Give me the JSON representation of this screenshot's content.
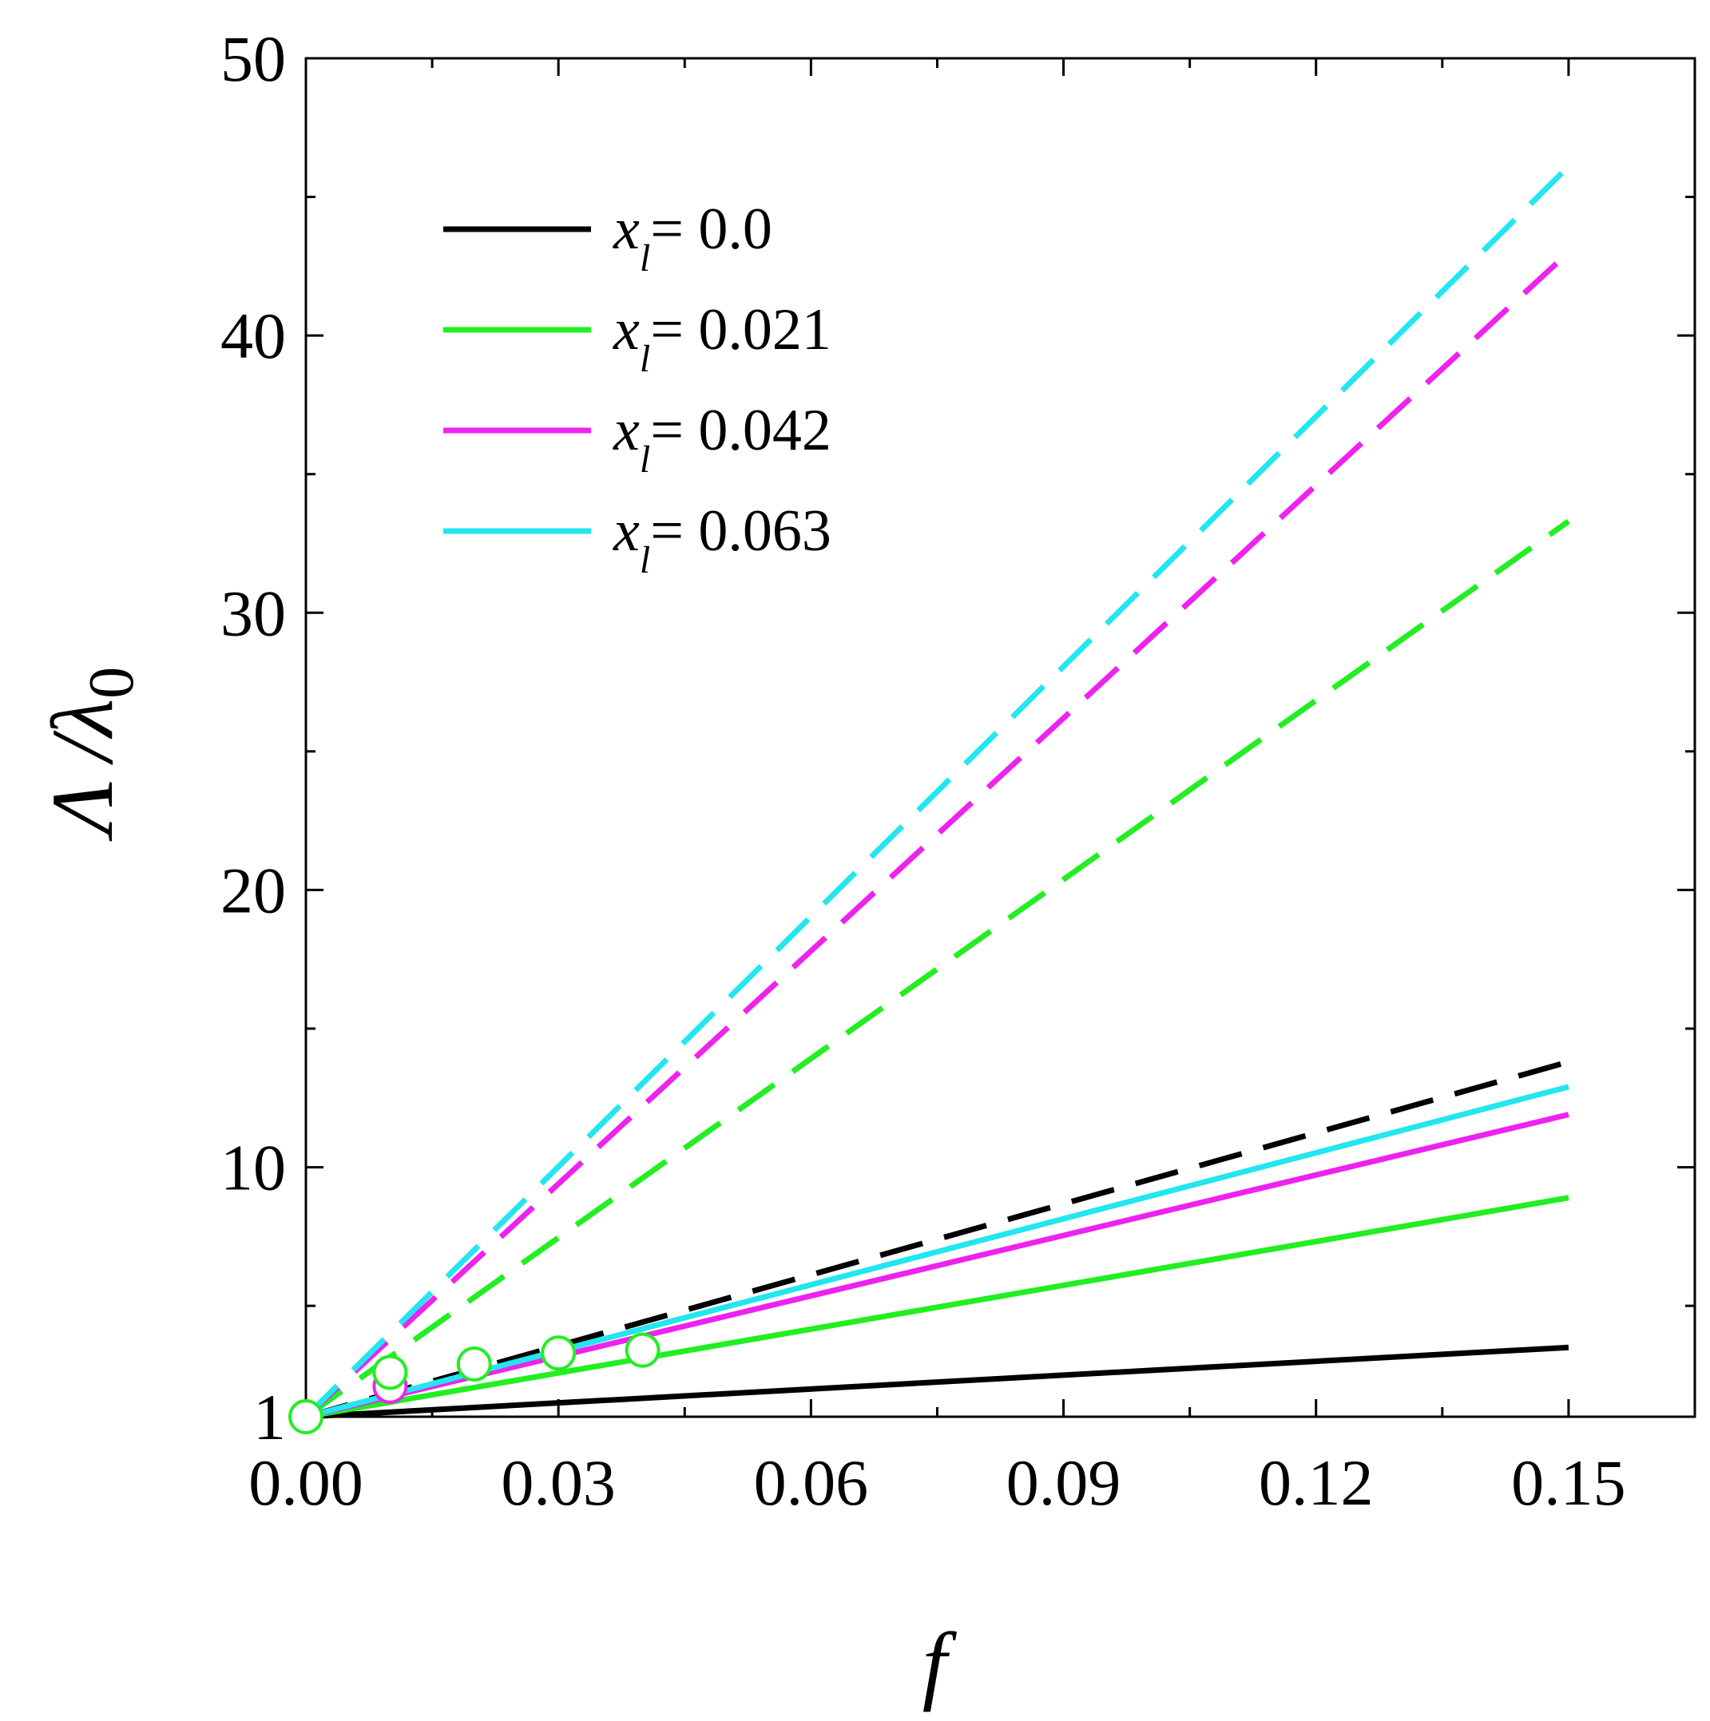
{
  "chart_data": {
    "type": "line",
    "title": "",
    "xlabel": "f",
    "ylabel": "Λ /λ",
    "ylabel_subscript": "0",
    "xlim": [
      0.0,
      0.165
    ],
    "ylim": [
      1,
      50
    ],
    "xticks": [
      0.0,
      0.03,
      0.06,
      0.09,
      0.12,
      0.15
    ],
    "xtick_labels": [
      "0.00",
      "0.03",
      "0.06",
      "0.09",
      "0.12",
      "0.15"
    ],
    "xticks_minor": [
      0.015,
      0.045,
      0.075,
      0.105,
      0.135,
      0.165
    ],
    "yticks": [
      1,
      10,
      20,
      30,
      40,
      50
    ],
    "ytick_labels": [
      "1",
      "10",
      "20",
      "30",
      "40",
      "50"
    ],
    "yticks_minor": [
      5,
      15,
      25,
      35,
      45
    ],
    "legend_position": "top-left",
    "legend_var": "x",
    "legend_var_subscript": "l",
    "series": [
      {
        "name": "x_l = 0.0",
        "label_value": "= 0.0",
        "color": "#000000",
        "style": "solid",
        "legend": true,
        "x": [
          0.0,
          0.15
        ],
        "y": [
          1.0,
          3.5
        ]
      },
      {
        "name": "x_l = 0.021",
        "label_value": "= 0.021",
        "color": "#22ee22",
        "style": "solid",
        "legend": true,
        "x": [
          0.0,
          0.15
        ],
        "y": [
          1.0,
          8.9
        ]
      },
      {
        "name": "x_l = 0.042",
        "label_value": "= 0.042",
        "color": "#ee22ee",
        "style": "solid",
        "legend": true,
        "x": [
          0.0,
          0.15
        ],
        "y": [
          1.0,
          11.9
        ]
      },
      {
        "name": "x_l = 0.063",
        "label_value": "= 0.063",
        "color": "#22e6f0",
        "style": "solid",
        "legend": true,
        "x": [
          0.0,
          0.15
        ],
        "y": [
          1.0,
          12.9
        ]
      },
      {
        "name": "x_l = 0.0 (dashed)",
        "color": "#000000",
        "style": "dashed",
        "legend": false,
        "x": [
          0.0,
          0.15
        ],
        "y": [
          1.0,
          13.8
        ]
      },
      {
        "name": "x_l = 0.021 (dashed)",
        "color": "#22ee22",
        "style": "dashed",
        "legend": false,
        "x": [
          0.0,
          0.15
        ],
        "y": [
          1.0,
          33.3
        ]
      },
      {
        "name": "x_l = 0.042 (dashed)",
        "color": "#ee22ee",
        "style": "dashed",
        "legend": false,
        "x": [
          0.0,
          0.15
        ],
        "y": [
          1.0,
          43.0
        ]
      },
      {
        "name": "x_l = 0.063 (dashed)",
        "color": "#22e6f0",
        "style": "dashed",
        "legend": false,
        "x": [
          0.0,
          0.15
        ],
        "y": [
          1.0,
          46.1
        ]
      }
    ],
    "markers": [
      {
        "x": 0.0,
        "y": 1.0,
        "color": "#22ee22"
      },
      {
        "x": 0.01,
        "y": 2.1,
        "color": "#ee22ee"
      },
      {
        "x": 0.01,
        "y": 2.6,
        "color": "#22ee22"
      },
      {
        "x": 0.02,
        "y": 2.9,
        "color": "#22ee22"
      },
      {
        "x": 0.03,
        "y": 3.3,
        "color": "#22ee22"
      },
      {
        "x": 0.04,
        "y": 3.4,
        "color": "#22ee22"
      }
    ]
  }
}
